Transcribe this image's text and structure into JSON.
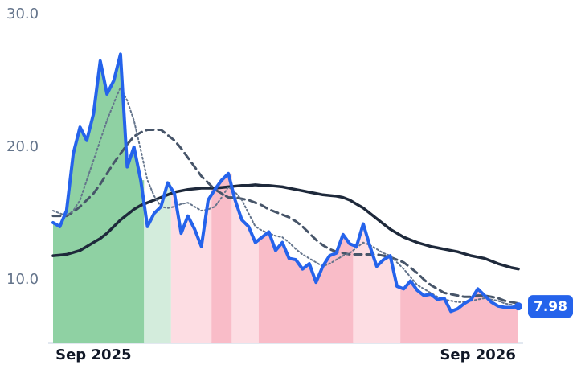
{
  "chart_data": {
    "type": "line",
    "categories": [
      null,
      null,
      null,
      null,
      null,
      null,
      "Sep 2025",
      null,
      null,
      null,
      null,
      null,
      null,
      null,
      null,
      null,
      null,
      null,
      null,
      null,
      null,
      null,
      null,
      null,
      null,
      null,
      null,
      null,
      null,
      null,
      null,
      null,
      null,
      null,
      null,
      null,
      null,
      null,
      null,
      null,
      null,
      null,
      null,
      null,
      null,
      null,
      null,
      null,
      null,
      null,
      null,
      null,
      null,
      null,
      null,
      null,
      null,
      null,
      null,
      null,
      null,
      null,
      null,
      "Sep 2026",
      null,
      null,
      null,
      null,
      null,
      null
    ],
    "series": [
      {
        "color": "#2563eb",
        "style": "solid",
        "width": 4,
        "values": [
          14.3,
          14.0,
          15.2,
          19.5,
          21.5,
          20.5,
          22.5,
          26.5,
          24.0,
          25.0,
          27.0,
          18.5,
          20.0,
          17.5,
          14.0,
          15.0,
          15.5,
          17.3,
          16.5,
          13.5,
          14.8,
          13.8,
          12.5,
          16.0,
          16.8,
          17.5,
          18.0,
          16.0,
          14.5,
          14.0,
          12.8,
          13.2,
          13.6,
          12.2,
          12.8,
          11.6,
          11.5,
          10.8,
          11.2,
          9.8,
          11.0,
          11.8,
          12.0,
          13.4,
          12.7,
          12.5,
          14.2,
          12.5,
          11.0,
          11.5,
          11.8,
          9.5,
          9.3,
          9.9,
          9.2,
          8.8,
          8.9,
          8.5,
          8.6,
          7.6,
          7.8,
          8.2,
          8.5,
          9.3,
          8.8,
          8.3,
          8.0,
          7.9,
          7.9,
          7.98
        ]
      },
      {
        "color": "#64748b",
        "style": "dotted",
        "width": 2,
        "values": [
          15.2,
          15.0,
          14.8,
          15.2,
          16.0,
          17.5,
          19.0,
          20.5,
          22.0,
          23.3,
          24.5,
          23.5,
          22.0,
          19.8,
          17.5,
          16.3,
          15.5,
          15.4,
          15.5,
          15.7,
          15.8,
          15.5,
          15.2,
          15.3,
          15.5,
          16.2,
          17.0,
          16.6,
          16.0,
          15.0,
          14.0,
          13.7,
          13.5,
          13.3,
          13.2,
          12.8,
          12.3,
          11.9,
          11.6,
          11.3,
          11.0,
          11.2,
          11.5,
          11.8,
          12.0,
          12.4,
          12.8,
          12.6,
          12.3,
          12.0,
          11.8,
          11.3,
          10.8,
          10.2,
          9.6,
          9.3,
          9.0,
          8.7,
          8.5,
          8.4,
          8.3,
          8.3,
          8.4,
          8.5,
          8.6,
          8.5,
          8.4,
          8.2,
          8.1,
          8.0
        ]
      },
      {
        "color": "#475569",
        "style": "dashed",
        "width": 3,
        "values": [
          14.8,
          14.8,
          14.8,
          15.1,
          15.5,
          16.0,
          16.5,
          17.2,
          18.0,
          18.8,
          19.5,
          20.2,
          20.8,
          21.1,
          21.3,
          21.3,
          21.3,
          20.9,
          20.5,
          19.9,
          19.2,
          18.5,
          17.8,
          17.3,
          16.8,
          16.5,
          16.2,
          16.2,
          16.1,
          16.0,
          15.8,
          15.6,
          15.3,
          15.1,
          14.9,
          14.7,
          14.4,
          14.0,
          13.5,
          13.0,
          12.6,
          12.3,
          12.1,
          12.0,
          11.9,
          11.9,
          11.9,
          11.9,
          11.9,
          11.8,
          11.7,
          11.5,
          11.3,
          10.9,
          10.5,
          10.0,
          9.6,
          9.3,
          9.0,
          8.9,
          8.8,
          8.7,
          8.7,
          8.8,
          8.8,
          8.7,
          8.6,
          8.4,
          8.3,
          8.2
        ]
      },
      {
        "color": "#1e293b",
        "style": "solid",
        "width": 3.5,
        "values": [
          11.8,
          11.85,
          11.9,
          12.05,
          12.2,
          12.5,
          12.8,
          13.1,
          13.5,
          14.0,
          14.5,
          14.9,
          15.3,
          15.6,
          15.8,
          16.0,
          16.2,
          16.4,
          16.6,
          16.7,
          16.8,
          16.85,
          16.9,
          16.9,
          16.9,
          16.95,
          17.0,
          17.05,
          17.1,
          17.1,
          17.15,
          17.1,
          17.1,
          17.05,
          17.0,
          16.9,
          16.8,
          16.7,
          16.6,
          16.5,
          16.4,
          16.35,
          16.3,
          16.2,
          16.0,
          15.7,
          15.4,
          15.0,
          14.6,
          14.2,
          13.8,
          13.5,
          13.2,
          13.0,
          12.8,
          12.65,
          12.5,
          12.4,
          12.3,
          12.2,
          12.1,
          11.95,
          11.8,
          11.7,
          11.6,
          11.4,
          11.2,
          11.05,
          10.9,
          10.8
        ]
      }
    ],
    "bands": [
      {
        "start": 0,
        "end": 13,
        "color": "#8fd1a3"
      },
      {
        "start": 14,
        "end": 17,
        "color": "#d3ecdc"
      },
      {
        "start": 18,
        "end": 23,
        "color": "#fddde3"
      },
      {
        "start": 24,
        "end": 26,
        "color": "#f9bcc8"
      },
      {
        "start": 27,
        "end": 30,
        "color": "#fddde3"
      },
      {
        "start": 31,
        "end": 44,
        "color": "#f9bcc8"
      },
      {
        "start": 45,
        "end": 51,
        "color": "#fddde3"
      },
      {
        "start": 52,
        "end": 69,
        "color": "#f9bcc8"
      }
    ],
    "ylim": [
      5.2,
      30.5
    ],
    "yticks": [
      {
        "value": 10,
        "label": "10.0"
      },
      {
        "value": 20,
        "label": "20.0"
      },
      {
        "value": 30,
        "label": "30.0"
      }
    ],
    "grid": false
  }
}
